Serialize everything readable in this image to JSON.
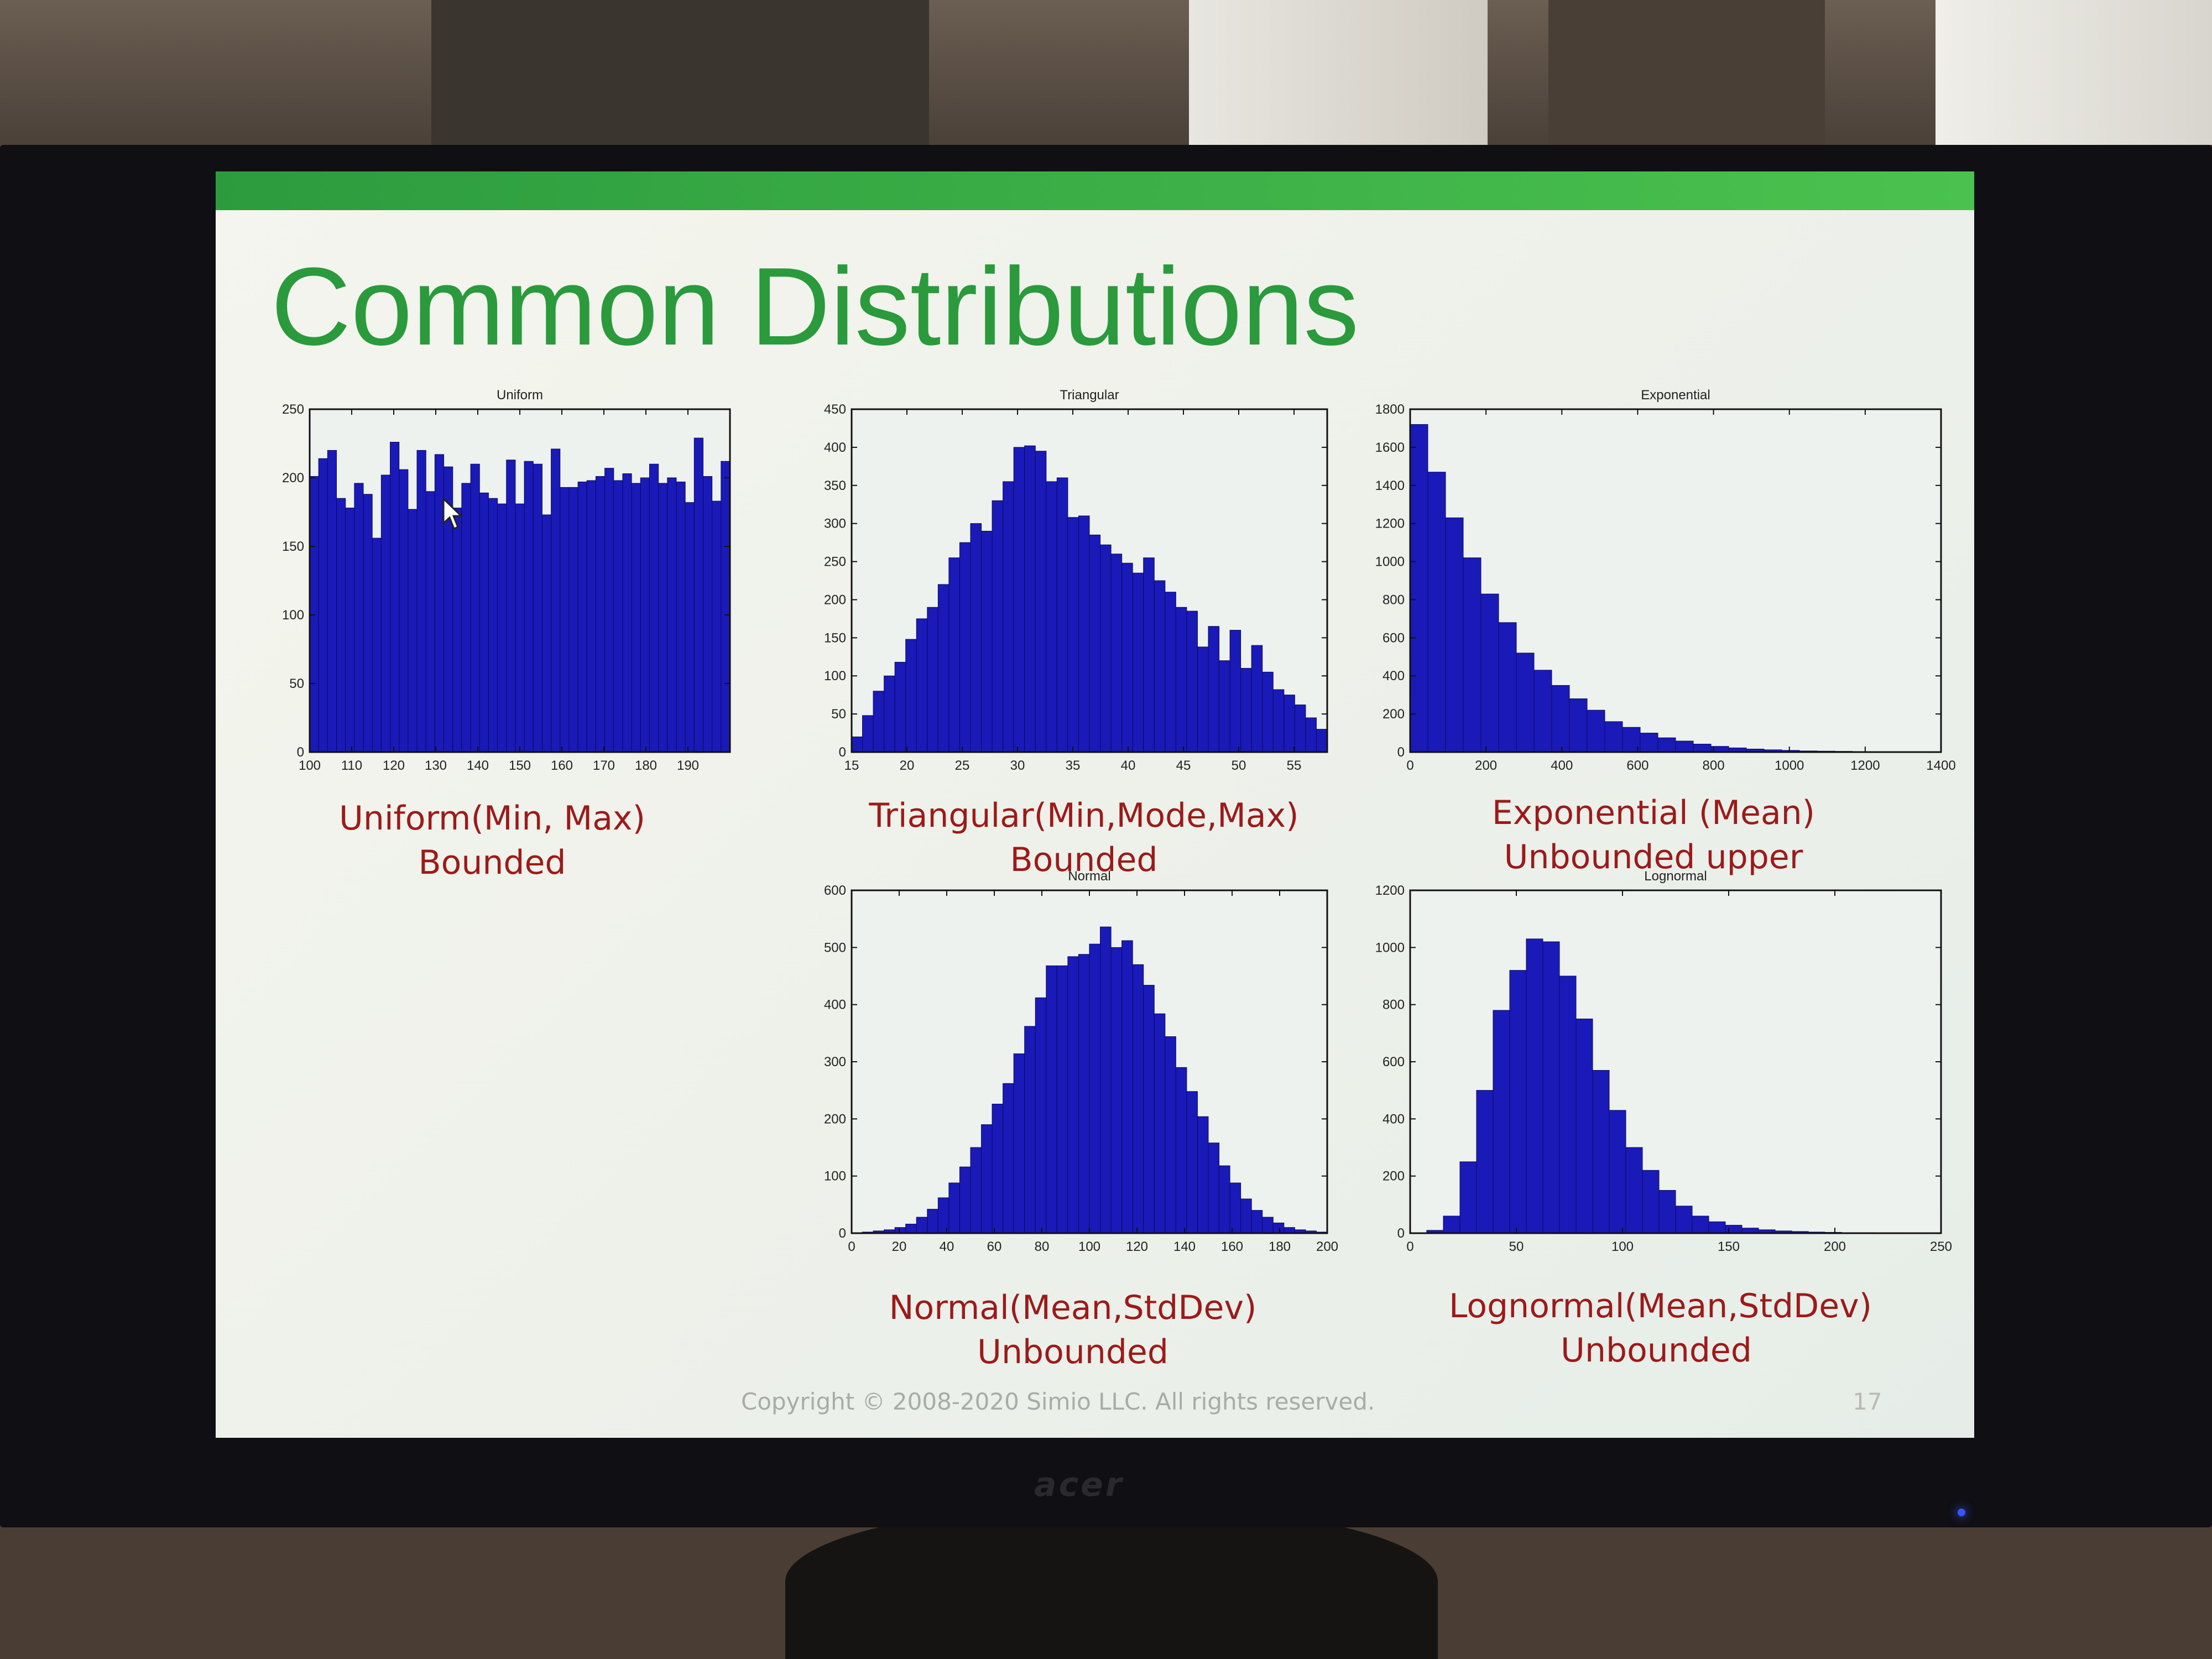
{
  "slide": {
    "title": "Common Distributions",
    "copyright": "Copyright © 2008-2020 Simio LLC. All rights reserved.",
    "page_number": "17"
  },
  "colors": {
    "bar_fill": "#1a1ab8",
    "title_green": "#2a9a3c",
    "caption_red": "#9c1a1a",
    "header_bar_green": "#3cb048"
  },
  "monitor": {
    "brand": "acer"
  },
  "captions": {
    "uniform": {
      "line1": "Uniform(Min, Max)",
      "line2": "Bounded"
    },
    "triangular": {
      "line1": "Triangular(Min,Mode,Max)",
      "line2": "Bounded"
    },
    "exponential": {
      "line1": "Exponential (Mean)",
      "line2": "Unbounded upper"
    },
    "normal": {
      "line1": "Normal(Mean,StdDev)",
      "line2": "Unbounded"
    },
    "lognormal": {
      "line1": "Lognormal(Mean,StdDev)",
      "line2": "Unbounded"
    }
  },
  "chart_data": [
    {
      "id": "uniform",
      "type": "bar",
      "title": "Uniform",
      "xlim": [
        100,
        200
      ],
      "ylim": [
        0,
        250
      ],
      "xticks": [
        100,
        110,
        120,
        130,
        140,
        150,
        160,
        170,
        180,
        190
      ],
      "yticks": [
        0,
        50,
        100,
        150,
        200,
        250
      ],
      "values": [
        201,
        214,
        220,
        185,
        178,
        196,
        188,
        156,
        202,
        226,
        206,
        177,
        220,
        190,
        217,
        208,
        178,
        196,
        210,
        189,
        185,
        181,
        213,
        181,
        212,
        210,
        173,
        221,
        193,
        193,
        197,
        198,
        201,
        207,
        198,
        203,
        196,
        200,
        210,
        196,
        200,
        197,
        182,
        229,
        201,
        183,
        212
      ]
    },
    {
      "id": "triangular",
      "type": "bar",
      "title": "Triangular",
      "xlim": [
        15,
        58
      ],
      "ylim": [
        0,
        450
      ],
      "xticks": [
        15,
        20,
        25,
        30,
        35,
        40,
        45,
        50,
        55
      ],
      "yticks": [
        0,
        50,
        100,
        150,
        200,
        250,
        300,
        350,
        400,
        450
      ],
      "values": [
        20,
        48,
        80,
        100,
        118,
        148,
        175,
        190,
        220,
        255,
        275,
        300,
        290,
        330,
        355,
        400,
        402,
        395,
        355,
        360,
        308,
        310,
        285,
        272,
        260,
        248,
        235,
        255,
        225,
        210,
        190,
        185,
        138,
        165,
        120,
        160,
        110,
        140,
        105,
        82,
        75,
        62,
        45,
        30
      ]
    },
    {
      "id": "exponential",
      "type": "bar",
      "title": "Exponential",
      "xlim": [
        0,
        1400
      ],
      "ylim": [
        0,
        1800
      ],
      "xticks": [
        0,
        200,
        400,
        600,
        800,
        1000,
        1200,
        1400
      ],
      "yticks": [
        0,
        200,
        400,
        600,
        800,
        1000,
        1200,
        1400,
        1600,
        1800
      ],
      "values": [
        1720,
        1470,
        1230,
        1020,
        830,
        680,
        520,
        430,
        350,
        280,
        220,
        160,
        130,
        100,
        75,
        58,
        42,
        30,
        22,
        16,
        12,
        9,
        6,
        5,
        4,
        3,
        2,
        2,
        1,
        1
      ]
    },
    {
      "id": "normal",
      "type": "bar",
      "title": "Normal",
      "xlim": [
        0,
        200
      ],
      "ylim": [
        0,
        600
      ],
      "xticks": [
        0,
        20,
        40,
        60,
        80,
        100,
        120,
        140,
        160,
        180,
        200
      ],
      "yticks": [
        0,
        100,
        200,
        300,
        400,
        500,
        600
      ],
      "values": [
        1,
        2,
        4,
        6,
        10,
        16,
        28,
        42,
        62,
        88,
        116,
        150,
        190,
        226,
        262,
        314,
        362,
        412,
        468,
        468,
        484,
        488,
        506,
        536,
        500,
        512,
        470,
        434,
        384,
        344,
        290,
        248,
        204,
        158,
        118,
        88,
        60,
        40,
        28,
        18,
        10,
        6,
        4,
        2
      ]
    },
    {
      "id": "lognormal",
      "type": "bar",
      "title": "Lognormal",
      "xlim": [
        0,
        250
      ],
      "ylim": [
        0,
        1200
      ],
      "xticks": [
        0,
        50,
        100,
        150,
        200,
        250
      ],
      "yticks": [
        0,
        200,
        400,
        600,
        800,
        1000,
        1200
      ],
      "values": [
        0,
        10,
        60,
        250,
        500,
        780,
        920,
        1030,
        1020,
        900,
        750,
        570,
        430,
        300,
        220,
        150,
        95,
        60,
        40,
        28,
        18,
        12,
        8,
        6,
        4,
        3,
        2,
        2,
        1,
        1,
        1,
        1
      ]
    }
  ]
}
